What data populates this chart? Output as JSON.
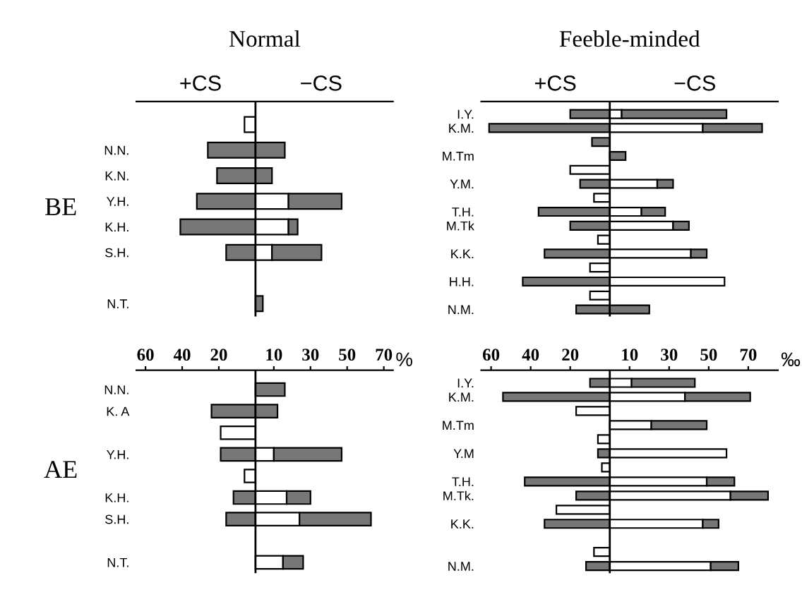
{
  "chart_data": [
    {
      "type": "bar",
      "orientation": "horizontal",
      "stacked": true,
      "title": "Normal",
      "ylabel": "BE",
      "annotations": [
        "+CS",
        "−CS"
      ],
      "categories": [
        null,
        "N.N.",
        "K.N.",
        "Y.H.",
        "K.H.",
        "S.H.",
        null,
        "N.T."
      ],
      "series": [
        {
          "color": "#ffffff",
          "values": [
            -6,
            null,
            null,
            null,
            null,
            null,
            null,
            null
          ]
        },
        {
          "color": "#777777",
          "values": [
            null,
            -26,
            -21,
            -32,
            -41,
            -16,
            null,
            null
          ]
        },
        {
          "color": "#ffffff",
          "values": [
            null,
            null,
            null,
            18,
            18,
            9,
            null,
            null
          ]
        },
        {
          "color": "#777777",
          "values": [
            null,
            16,
            9,
            29,
            5,
            27,
            null,
            4
          ]
        }
      ],
      "xlim": [
        -65,
        75
      ],
      "xticks": [
        {
          "value": -60,
          "label": null
        },
        {
          "value": -40,
          "label": null
        },
        {
          "value": -20,
          "label": null
        },
        {
          "value": 10,
          "label": null
        },
        {
          "value": 30,
          "label": null
        },
        {
          "value": 50,
          "label": null
        },
        {
          "value": 70,
          "label": null
        }
      ],
      "tick_labels": "y",
      "ref_lines": [
        {
          "axis": "x",
          "value": 0
        }
      ]
    },
    {
      "type": "bar",
      "orientation": "horizontal",
      "stacked": true,
      "title": "Feeble-minded",
      "annotations": [
        "+CS",
        "−CS"
      ],
      "categories": [
        "I.Y.",
        "K.M.",
        null,
        "M.Tm",
        null,
        "Y.M.",
        null,
        "T.H.",
        "M.Tk",
        null,
        "K.K.",
        null,
        "H.H.",
        null,
        "N.M."
      ],
      "series": [
        {
          "color": "#ffffff",
          "values": [
            null,
            null,
            null,
            null,
            -20,
            null,
            -8,
            null,
            null,
            -6,
            null,
            -10,
            null,
            -10,
            null
          ]
        },
        {
          "color": "#777777",
          "values": [
            -20,
            -61,
            null,
            null,
            null,
            -15,
            null,
            -36,
            -20,
            null,
            -33,
            null,
            -44,
            null,
            -17
          ]
        },
        {
          "color": "#ffffff",
          "values": [
            6,
            47,
            null,
            null,
            null,
            24,
            null,
            16,
            32,
            null,
            41,
            null,
            58,
            null,
            null
          ]
        },
        {
          "color": "#777777",
          "values": [
            53,
            30,
            null,
            8,
            null,
            8,
            null,
            12,
            8,
            null,
            8,
            null,
            null,
            null,
            20
          ]
        },
        {
          "color": "#777777",
          "values": [
            null,
            null,
            -9,
            null,
            null,
            null,
            null,
            null,
            null,
            null,
            null,
            null,
            null,
            null,
            null
          ]
        }
      ],
      "xlim": [
        -65,
        85
      ],
      "xticks": [
        {
          "value": -60,
          "label": null
        },
        {
          "value": -40,
          "label": null
        },
        {
          "value": -20,
          "label": null
        },
        {
          "value": 10,
          "label": null
        },
        {
          "value": 30,
          "label": null
        },
        {
          "value": 50,
          "label": null
        },
        {
          "value": 70,
          "label": null
        }
      ],
      "tick_labels": "y",
      "ref_lines": [
        {
          "axis": "x",
          "value": 0
        }
      ]
    },
    {
      "type": "bar",
      "orientation": "horizontal",
      "stacked": true,
      "ylabel": "AE",
      "xlabel": "%",
      "categories": [
        "N.N.",
        "K. A",
        null,
        "Y.H.",
        null,
        "K.H.",
        "S.H.",
        null,
        "N.T."
      ],
      "series": [
        {
          "color": "#ffffff",
          "values": [
            null,
            null,
            -19,
            null,
            -6,
            null,
            null,
            null,
            null
          ]
        },
        {
          "color": "#777777",
          "values": [
            null,
            -24,
            null,
            -19,
            null,
            -12,
            -16,
            null,
            null
          ]
        },
        {
          "color": "#ffffff",
          "values": [
            null,
            null,
            null,
            10,
            null,
            17,
            24,
            null,
            15
          ]
        },
        {
          "color": "#777777",
          "values": [
            16,
            12,
            null,
            37,
            null,
            13,
            39,
            null,
            11
          ]
        }
      ],
      "xlim": [
        -65,
        75
      ],
      "xticks": [
        {
          "value": -60,
          "label": "60"
        },
        {
          "value": -40,
          "label": "40"
        },
        {
          "value": -20,
          "label": "20"
        },
        10,
        30,
        50,
        70
      ],
      "ref_lines": [
        {
          "axis": "x",
          "value": 0
        }
      ]
    },
    {
      "type": "bar",
      "orientation": "horizontal",
      "stacked": true,
      "xlabel": "‰",
      "categories": [
        "I.Y.",
        "K.M.",
        null,
        "M.Tm",
        null,
        "Y.M",
        null,
        "T.H.",
        "M.Tk.",
        null,
        "K.K.",
        null,
        null,
        "N.M."
      ],
      "series": [
        {
          "color": "#ffffff",
          "values": [
            null,
            null,
            -17,
            null,
            -6,
            null,
            -4,
            null,
            null,
            -27,
            null,
            null,
            -8,
            null
          ]
        },
        {
          "color": "#777777",
          "values": [
            -10,
            -54,
            null,
            null,
            null,
            -6,
            null,
            -43,
            -17,
            null,
            -33,
            null,
            null,
            -12
          ]
        },
        {
          "color": "#ffffff",
          "values": [
            11,
            38,
            null,
            21,
            null,
            59,
            null,
            49,
            61,
            null,
            47,
            null,
            null,
            51
          ]
        },
        {
          "color": "#777777",
          "values": [
            32,
            33,
            null,
            28,
            null,
            null,
            null,
            14,
            19,
            null,
            8,
            null,
            null,
            14
          ]
        }
      ],
      "xlim": [
        -65,
        85
      ],
      "xticks": [
        {
          "value": -60,
          "label": "60"
        },
        {
          "value": -40,
          "label": "40"
        },
        {
          "value": -20,
          "label": "20"
        },
        10,
        30,
        50,
        70
      ],
      "ref_lines": [
        {
          "axis": "x",
          "value": 0
        }
      ]
    }
  ]
}
